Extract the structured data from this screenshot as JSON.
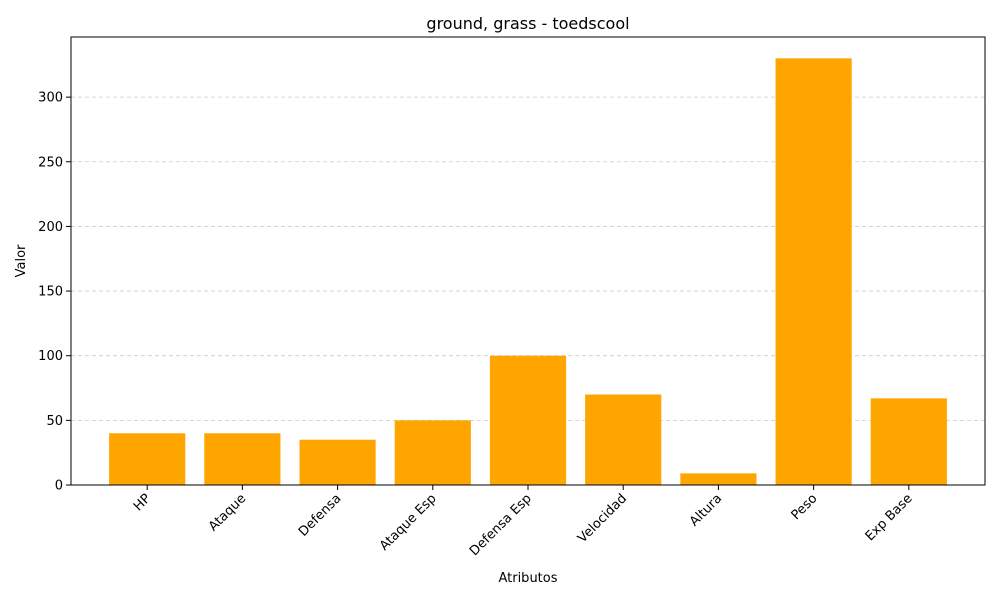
{
  "chart_data": {
    "type": "bar",
    "title": "ground, grass - toedscool",
    "xlabel": "Atributos",
    "ylabel": "Valor",
    "categories": [
      "HP",
      "Ataque",
      "Defensa",
      "Ataque Esp",
      "Defensa Esp",
      "Velocidad",
      "Altura",
      "Peso",
      "Exp Base"
    ],
    "values": [
      40,
      40,
      35,
      50,
      100,
      70,
      9,
      330,
      67
    ],
    "ylim": [
      0,
      346.5
    ],
    "yticks": [
      0,
      50,
      100,
      150,
      200,
      250,
      300
    ],
    "grid": "y-dashed",
    "bar_color": "#FFA500",
    "grid_color": "#cccccc"
  }
}
